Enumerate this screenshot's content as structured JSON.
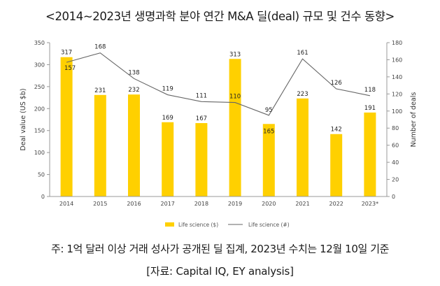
{
  "title": "<2014~2023년 생명과학 분야 연간 M&A 딜(deal) 규모 및 건수 동향>",
  "footnote": "주: 1억 달러 이상 거래 성사가 공개된 딜 집계, 2023년 수치는 12월 10일 기준",
  "source": "[자료: Capital IQ, EY analysis]",
  "colors": {
    "bar": "#FFD000",
    "line": "#666666",
    "axis": "#999999"
  },
  "chart_data": {
    "type": "bar",
    "categories": [
      "2014",
      "2015",
      "2016",
      "2017",
      "2018",
      "2019",
      "2020",
      "2021",
      "2022",
      "2023*"
    ],
    "series": [
      {
        "name": "Life science ($)",
        "type": "bar",
        "axis": "left",
        "values": [
          317,
          231,
          232,
          169,
          167,
          313,
          165,
          223,
          142,
          191
        ]
      },
      {
        "name": "Life science (#)",
        "type": "line",
        "axis": "right",
        "values": [
          157,
          168,
          138,
          119,
          111,
          110,
          95,
          161,
          126,
          118
        ]
      }
    ],
    "ylabel": "Deal value (US $b)",
    "y2label": "Number of deals",
    "ylim": [
      0,
      350
    ],
    "y2lim": [
      0,
      180
    ],
    "yticks": [
      0,
      50,
      100,
      150,
      200,
      250,
      300,
      350
    ],
    "y2ticks": [
      0,
      20,
      40,
      60,
      80,
      100,
      120,
      140,
      160,
      180
    ],
    "legend_position": "bottom-center",
    "grid": false
  }
}
